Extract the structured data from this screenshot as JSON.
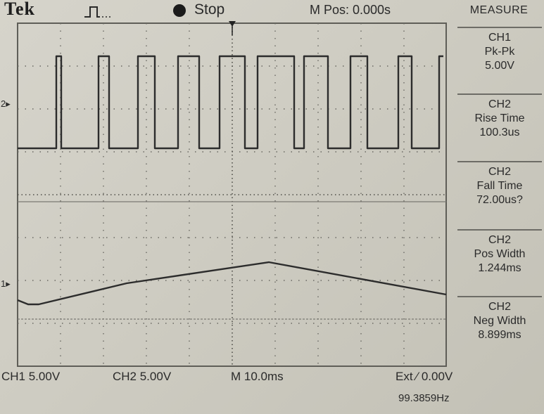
{
  "header": {
    "brand": "Tek",
    "trigger_icon": "trigger-waveform-icon",
    "run_state": "Stop",
    "horizontal_position": "M Pos: 0.000s"
  },
  "measure": {
    "title": "MEASURE",
    "items": [
      {
        "source": "CH1",
        "type": "Pk-Pk",
        "value": "5.00V"
      },
      {
        "source": "CH2",
        "type": "Rise Time",
        "value": "100.3us"
      },
      {
        "source": "CH2",
        "type": "Fall Time",
        "value": "72.00us?"
      },
      {
        "source": "CH2",
        "type": "Pos Width",
        "value": "1.244ms"
      },
      {
        "source": "CH2",
        "type": "Neg Width",
        "value": "8.899ms"
      }
    ]
  },
  "markers": {
    "ch2": "2",
    "ch1": "1"
  },
  "status": {
    "ch1_scale": "CH1  5.00V",
    "ch2_scale": "CH2  5.00V",
    "timebase": "M 10.0ms",
    "trigger": "Ext ⁄ 0.00V",
    "frequency": "99.3859Hz"
  },
  "colors": {
    "trace": "#2a2a2a",
    "grid": "#5a5a55",
    "background": "#cfcdc3"
  }
}
